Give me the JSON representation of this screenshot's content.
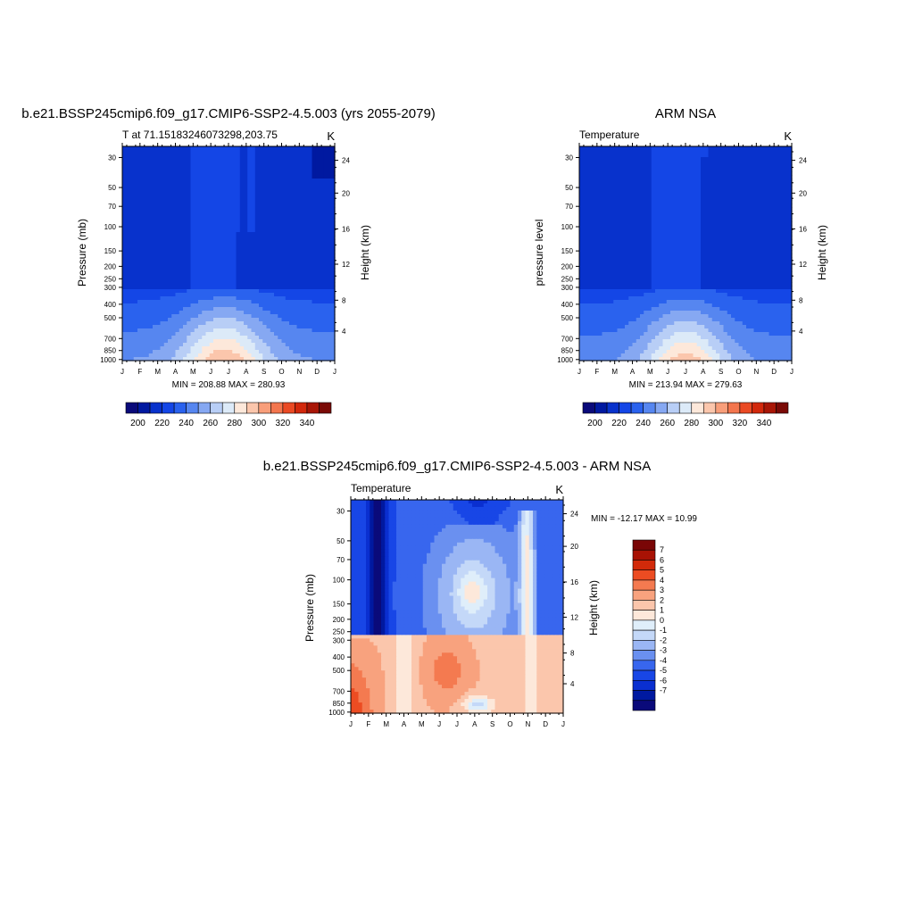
{
  "colors": {
    "temp_palette": [
      "#0a0a7a",
      "#0019a0",
      "#0832cc",
      "#1446e6",
      "#2a62ee",
      "#5686f0",
      "#86a8f2",
      "#b8cef6",
      "#dceaf8",
      "#fde8da",
      "#fbc6ac",
      "#f89e7a",
      "#f3764e",
      "#ea4a24",
      "#d2280c",
      "#a81606",
      "#7a0a06"
    ],
    "diff_palette": [
      "#0a0a7a",
      "#0019a0",
      "#0a2fd0",
      "#1846e6",
      "#3866ee",
      "#6a90f0",
      "#9ab6f4",
      "#c4d8f8",
      "#dfeefa",
      "#fde8da",
      "#fbc6ac",
      "#f8a27e",
      "#f47a50",
      "#ec4c22",
      "#d22a0a",
      "#a81204",
      "#7a0606"
    ]
  },
  "chart_data": [
    {
      "type": "heatmap",
      "title": "b.e21.BSSP245cmip6.f09_g17.CMIP6-SSP2-4.5.003 (yrs 2055-2079)",
      "left_string": "T at 71.15183246073298,203.75",
      "right_string": "K",
      "ylabel": "Pressure (mb)",
      "ylabel_right": "Height (km)",
      "x_ticks": [
        "J",
        "F",
        "M",
        "A",
        "M",
        "J",
        "J",
        "A",
        "S",
        "O",
        "N",
        "D",
        "J"
      ],
      "y_ticks": [
        "30",
        "50",
        "70",
        "100",
        "150",
        "200",
        "250",
        "300",
        "400",
        "500",
        "700",
        "850",
        "1000"
      ],
      "y_ticks_right": [
        "24",
        "20",
        "16",
        "12",
        "8",
        "4"
      ],
      "stats": "MIN = 208.88 MAX = 280.93",
      "colorbar_labels": [
        "200",
        "220",
        "240",
        "260",
        "280",
        "300",
        "320",
        "340"
      ],
      "colorbar_levels": [
        195,
        200,
        205,
        210,
        215,
        220,
        225,
        230,
        235,
        240,
        245,
        250,
        255,
        260,
        265,
        270,
        275,
        280,
        285,
        290,
        295,
        300,
        305,
        310,
        315,
        320,
        325,
        330,
        335,
        340,
        345
      ],
      "min": 208.88,
      "max": 280.93
    },
    {
      "type": "heatmap",
      "title": "ARM NSA",
      "left_string": "Temperature",
      "right_string": "K",
      "ylabel": "pressure level",
      "ylabel_right": "Height (km)",
      "x_ticks": [
        "J",
        "F",
        "M",
        "A",
        "M",
        "J",
        "J",
        "A",
        "S",
        "O",
        "N",
        "D",
        "J"
      ],
      "y_ticks": [
        "30",
        "50",
        "70",
        "100",
        "150",
        "200",
        "250",
        "300",
        "400",
        "500",
        "700",
        "850",
        "1000"
      ],
      "y_ticks_right": [
        "24",
        "20",
        "16",
        "12",
        "8",
        "4"
      ],
      "stats": "MIN = 213.94 MAX = 279.63",
      "colorbar_labels": [
        "200",
        "220",
        "240",
        "260",
        "280",
        "300",
        "320",
        "340"
      ],
      "min": 213.94,
      "max": 279.63
    },
    {
      "type": "heatmap",
      "title": "b.e21.BSSP245cmip6.f09_g17.CMIP6-SSP2-4.5.003 - ARM NSA",
      "left_string": "Temperature",
      "right_string": "K",
      "ylabel": "Pressure (mb)",
      "ylabel_right": "Height (km)",
      "x_ticks": [
        "J",
        "F",
        "M",
        "A",
        "M",
        "J",
        "J",
        "A",
        "S",
        "O",
        "N",
        "D",
        "J"
      ],
      "y_ticks": [
        "30",
        "50",
        "70",
        "100",
        "150",
        "200",
        "250",
        "300",
        "400",
        "500",
        "700",
        "850",
        "1000"
      ],
      "y_ticks_right": [
        "24",
        "20",
        "16",
        "12",
        "8",
        "4"
      ],
      "stats": "MIN = -12.17 MAX =  10.99",
      "colorbar_labels": [
        "7",
        "6",
        "5",
        "4",
        "3",
        "2",
        "1",
        "0",
        "-1",
        "-2",
        "-3",
        "-4",
        "-5",
        "-6",
        "-7"
      ],
      "colorbar_levels": [
        -7,
        -6,
        -5,
        -4,
        -3,
        -2,
        -1,
        0,
        1,
        2,
        3,
        4,
        5,
        6,
        7
      ],
      "min": -12.17,
      "max": 10.99
    }
  ]
}
